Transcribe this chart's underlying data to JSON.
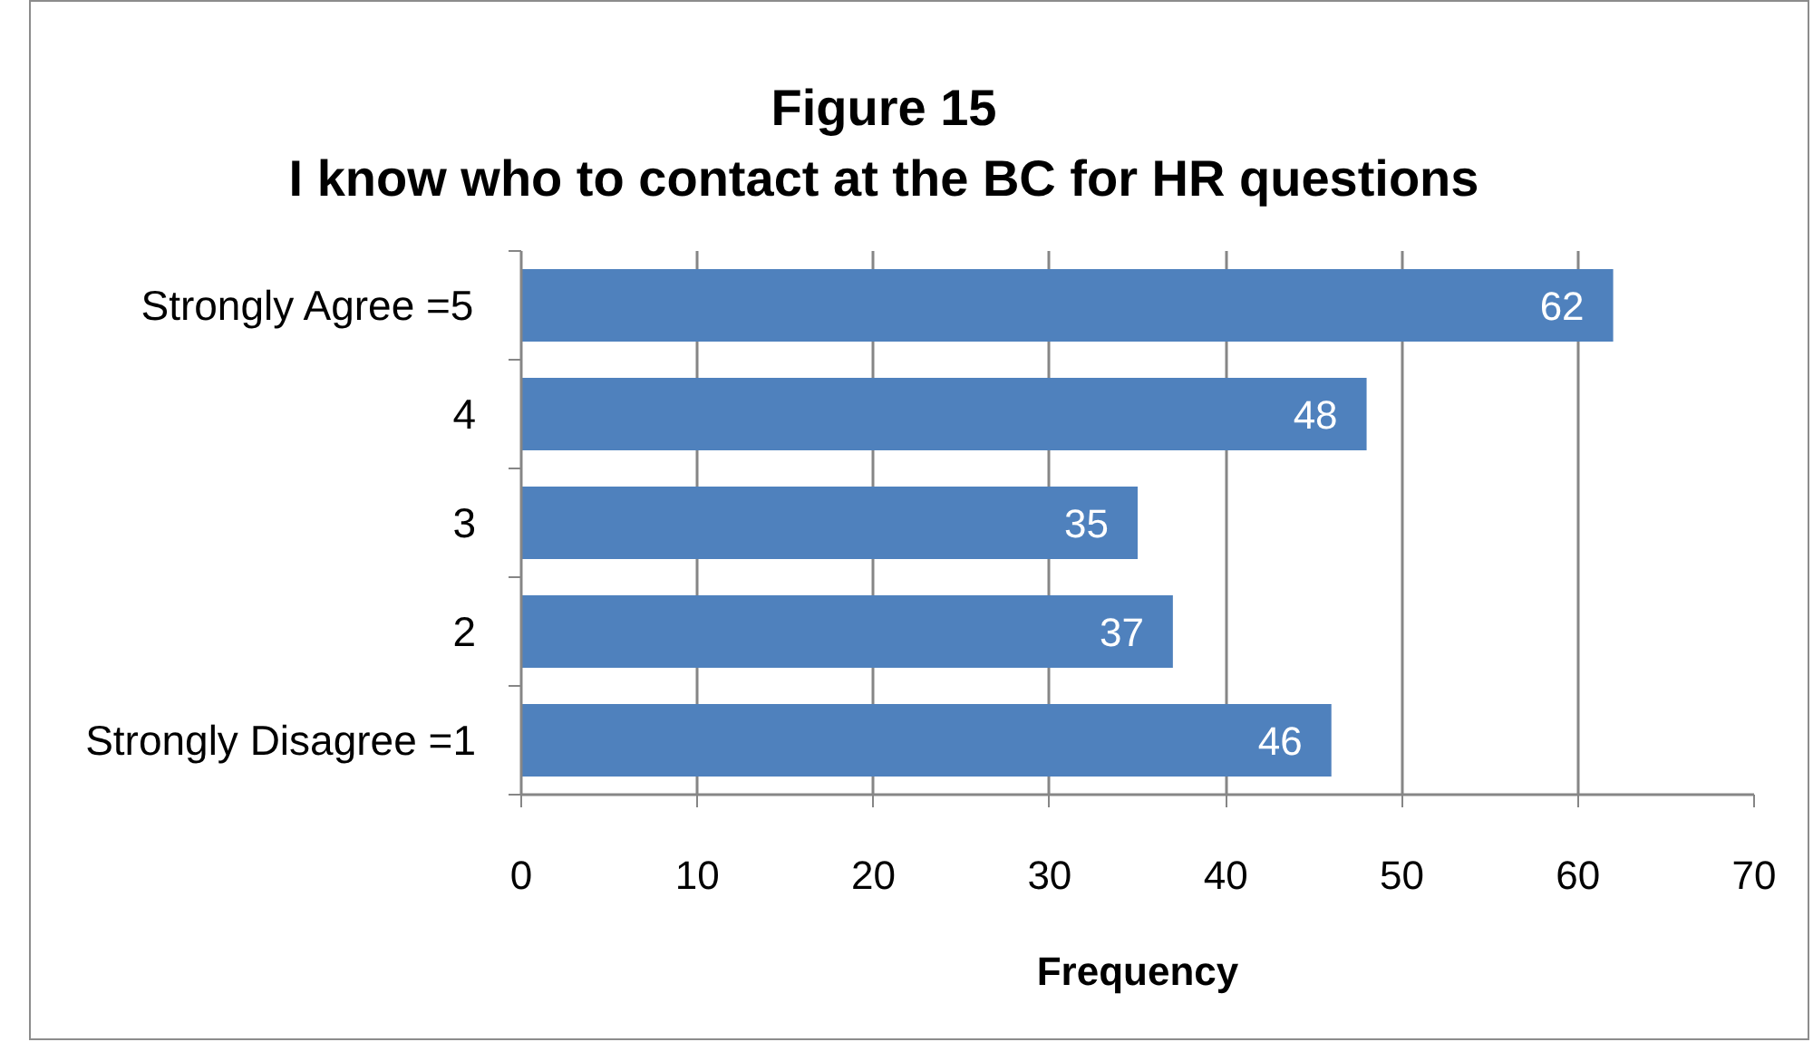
{
  "chart_data": {
    "type": "bar",
    "orientation": "horizontal",
    "title": "Figure 15",
    "subtitle": "I know who to contact at the BC for HR questions",
    "xlabel": "Frequency",
    "categories": [
      "Strongly Agree =5",
      "4",
      "3",
      "2",
      "Strongly Disagree =1"
    ],
    "values": [
      62,
      48,
      35,
      37,
      46
    ],
    "color": "#4f81bd",
    "xlim": [
      0,
      70
    ],
    "xticks": [
      0,
      10,
      20,
      30,
      40,
      50,
      60,
      70
    ],
    "grid": "x",
    "data_labels": true
  }
}
